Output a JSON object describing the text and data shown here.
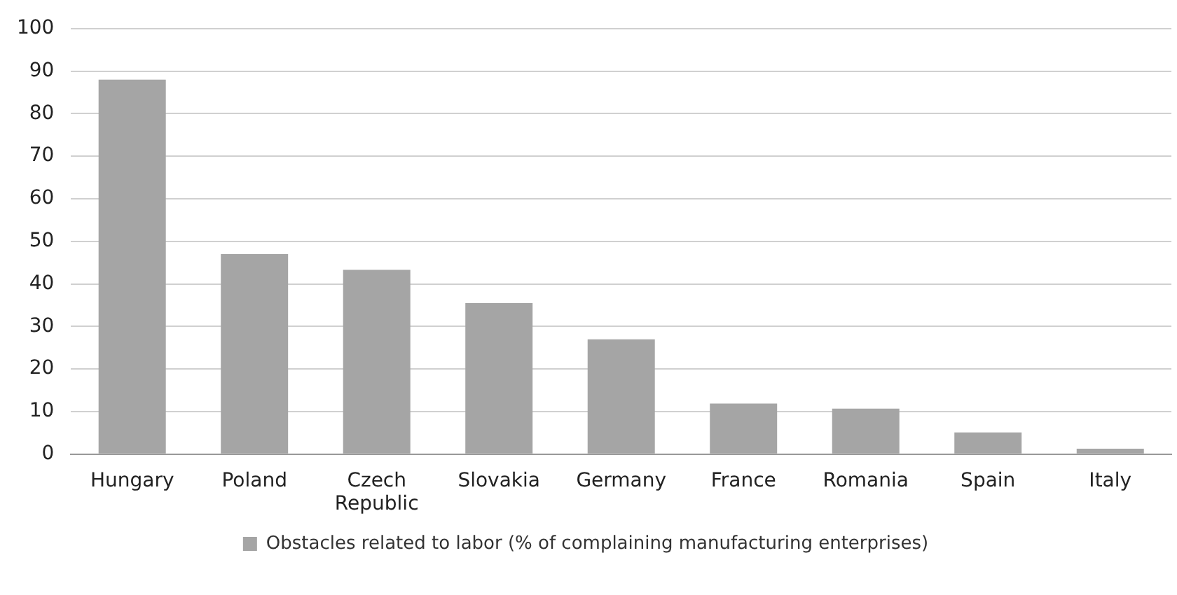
{
  "chart_data": {
    "type": "bar",
    "categories": [
      "Hungary",
      "Poland",
      "Czech Republic",
      "Slovakia",
      "Germany",
      "France",
      "Romania",
      "Spain",
      "Italy"
    ],
    "series": [
      {
        "name": "Obstacles related to labor (% of complaining manufacturing enterprises)",
        "color": "#a5a5a5",
        "values": [
          88,
          47,
          43.3,
          35.5,
          27,
          11.9,
          10.7,
          5.1,
          1.3
        ]
      }
    ],
    "ylim": [
      0,
      100
    ],
    "yticks": [
      0,
      10,
      20,
      30,
      40,
      50,
      60,
      70,
      80,
      90,
      100
    ],
    "grid": "y",
    "legend": "bottom"
  }
}
